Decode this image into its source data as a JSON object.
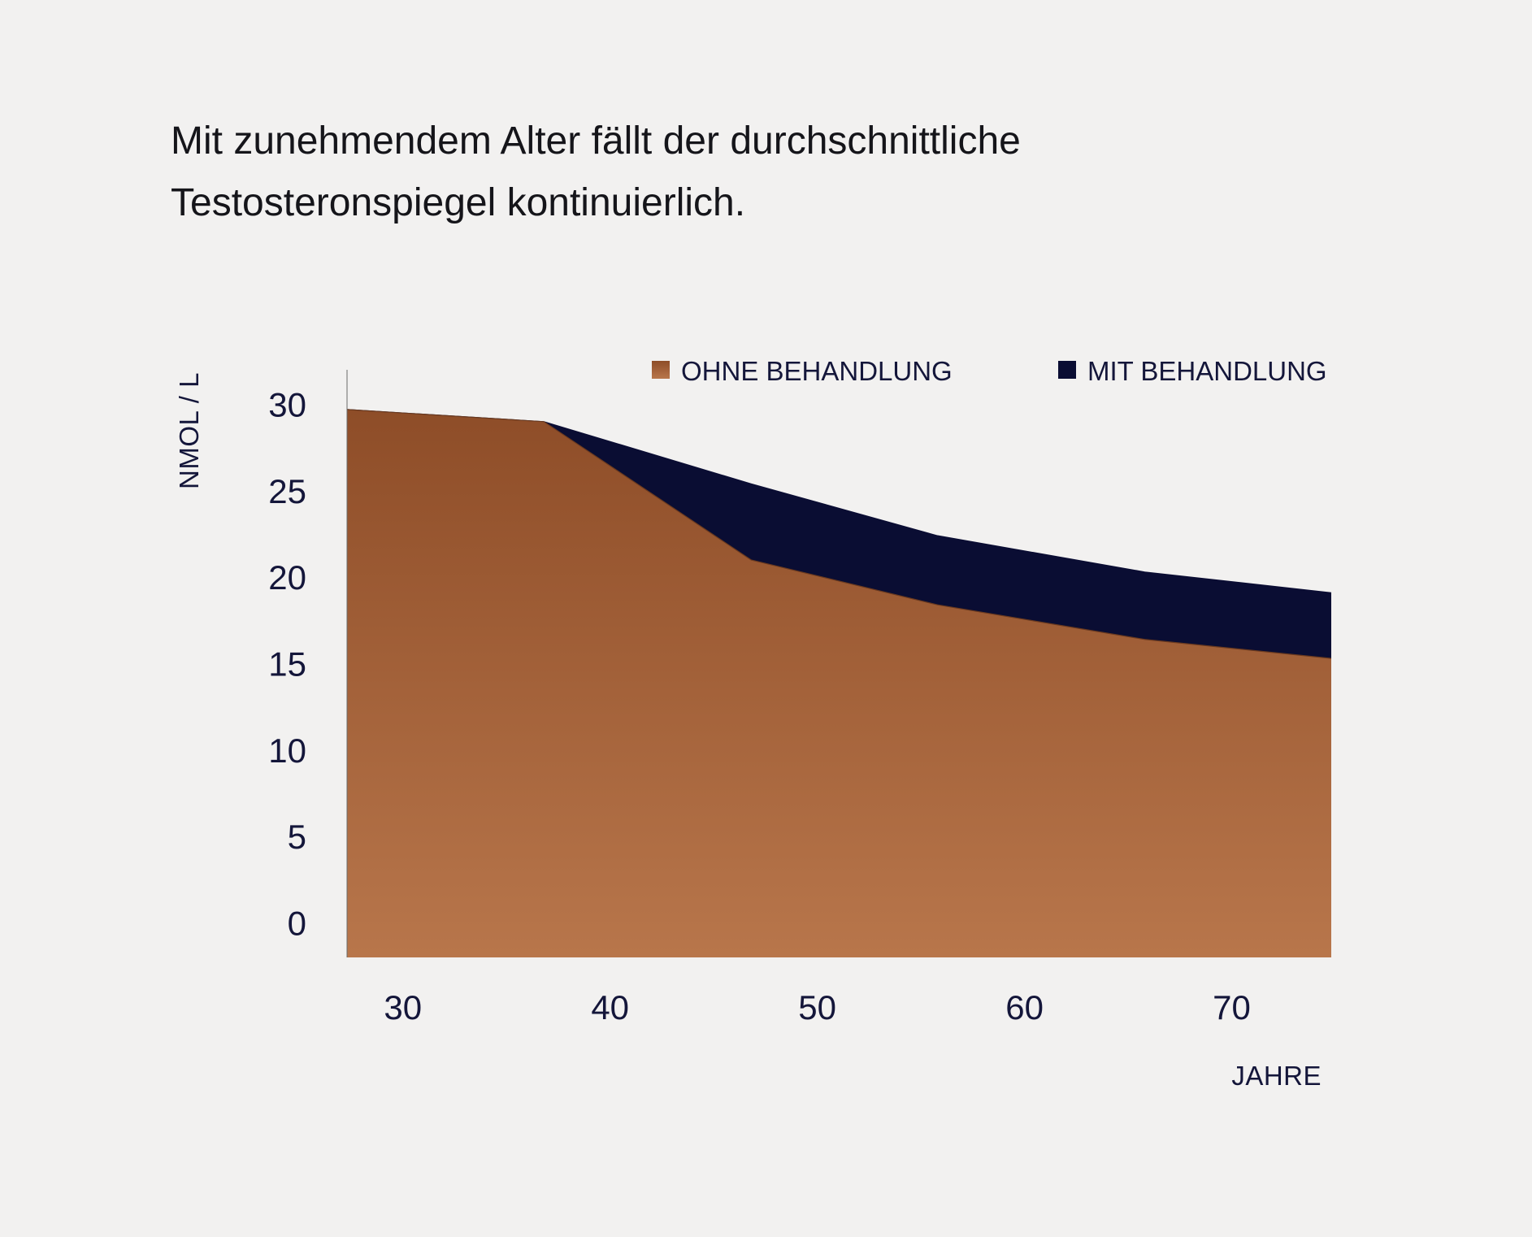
{
  "title_lines": [
    "Mit zunehmendem Alter fällt der durchschnittliche",
    "Testosteronspiegel kontinuierlich."
  ],
  "chart_data": {
    "type": "area",
    "title": "Mit zunehmendem Alter fällt der durchschnittliche Testosteronspiegel kontinuierlich.",
    "xlabel": "JAHRE",
    "ylabel": "NMOL / L",
    "x_ticks": [
      30,
      40,
      50,
      60,
      70
    ],
    "y_ticks": [
      0,
      5,
      10,
      15,
      20,
      25,
      30
    ],
    "xlim": [
      27.5,
      75
    ],
    "ylim": [
      -2,
      32
    ],
    "grid": false,
    "legend_position": "top-right",
    "x": [
      27.5,
      37,
      47,
      56,
      66,
      75
    ],
    "series": [
      {
        "name": "MIT BEHANDLUNG",
        "color": "#0a0d33",
        "values": [
          29.7,
          29.0,
          25.4,
          22.4,
          20.3,
          19.1
        ]
      },
      {
        "name": "OHNE BEHANDLUNG",
        "color": "#b8764b",
        "gradient": [
          "#8e4d28",
          "#b8764b"
        ],
        "values": [
          29.7,
          29.0,
          21.0,
          18.4,
          16.4,
          15.3
        ]
      }
    ]
  }
}
